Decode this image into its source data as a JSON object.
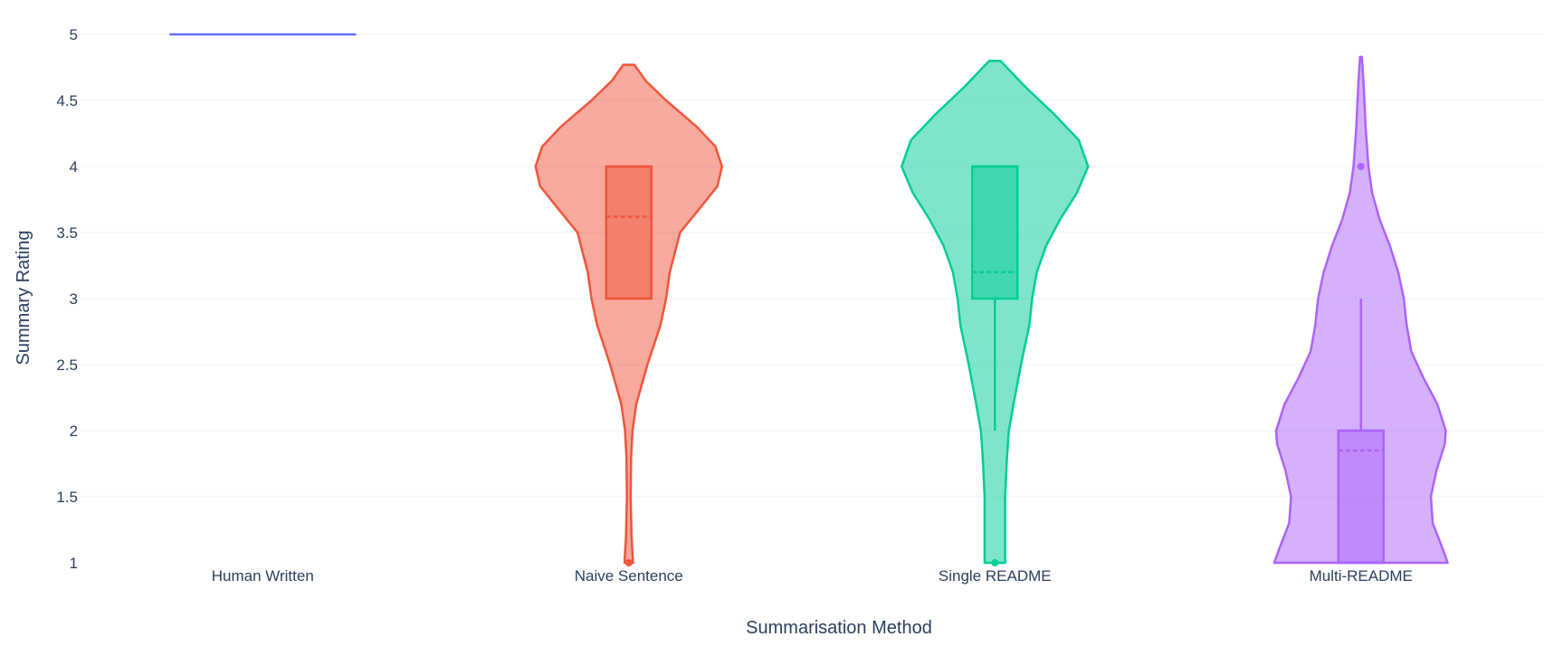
{
  "chart_data": {
    "type": "violin",
    "title": "",
    "xlabel": "Summarisation Method",
    "ylabel": "Summary Rating",
    "ylim": [
      1,
      5
    ],
    "yticks": [
      1,
      1.5,
      2,
      2.5,
      3,
      3.5,
      4,
      4.5,
      5
    ],
    "ytick_labels": [
      "1",
      "1.5",
      "2",
      "2.5",
      "3",
      "3.5",
      "4",
      "4.5",
      "5"
    ],
    "grid": true,
    "legend": "none",
    "categories": [
      "Human Written",
      "Naive Sentence",
      "Single README",
      "Multi-README"
    ],
    "series": [
      {
        "category": "Human Written",
        "color": "#636efa",
        "min": 5,
        "q1": 5,
        "median": 5,
        "q3": 5,
        "max": 5,
        "mean": 5,
        "outliers": [],
        "density": [
          [
            5,
            1.0
          ]
        ]
      },
      {
        "category": "Naive Sentence",
        "color": "#ef553b",
        "min": 3,
        "q1": 3,
        "median": 4,
        "q3": 4,
        "max": 4,
        "mean": 3.62,
        "outliers": [
          1
        ],
        "density": [
          [
            1.0,
            0.045
          ],
          [
            1.2,
            0.03
          ],
          [
            1.5,
            0.02
          ],
          [
            1.8,
            0.025
          ],
          [
            2.0,
            0.04
          ],
          [
            2.2,
            0.08
          ],
          [
            2.5,
            0.2
          ],
          [
            2.8,
            0.34
          ],
          [
            3.0,
            0.4
          ],
          [
            3.2,
            0.44
          ],
          [
            3.5,
            0.55
          ],
          [
            3.7,
            0.78
          ],
          [
            3.85,
            0.95
          ],
          [
            4.0,
            1.0
          ],
          [
            4.15,
            0.93
          ],
          [
            4.3,
            0.73
          ],
          [
            4.5,
            0.4
          ],
          [
            4.65,
            0.18
          ],
          [
            4.77,
            0.06
          ]
        ]
      },
      {
        "category": "Single README",
        "color": "#00cc96",
        "min": 2,
        "q1": 3,
        "median": 4,
        "q3": 4,
        "max": 4,
        "mean": 3.2,
        "outliers": [
          1
        ],
        "density": [
          [
            1.0,
            0.11
          ],
          [
            1.2,
            0.11
          ],
          [
            1.5,
            0.11
          ],
          [
            1.8,
            0.13
          ],
          [
            2.0,
            0.15
          ],
          [
            2.2,
            0.2
          ],
          [
            2.5,
            0.28
          ],
          [
            2.8,
            0.37
          ],
          [
            3.0,
            0.4
          ],
          [
            3.2,
            0.45
          ],
          [
            3.4,
            0.55
          ],
          [
            3.6,
            0.7
          ],
          [
            3.8,
            0.88
          ],
          [
            4.0,
            1.0
          ],
          [
            4.2,
            0.9
          ],
          [
            4.4,
            0.63
          ],
          [
            4.6,
            0.33
          ],
          [
            4.8,
            0.06
          ]
        ]
      },
      {
        "category": "Multi-README",
        "color": "#ab63fa",
        "min": 1,
        "q1": 1,
        "median": 2,
        "q3": 2,
        "max": 3,
        "mean": 1.85,
        "outliers": [
          4
        ],
        "density": [
          [
            1.0,
            0.93
          ],
          [
            1.1,
            0.88
          ],
          [
            1.3,
            0.77
          ],
          [
            1.5,
            0.75
          ],
          [
            1.7,
            0.81
          ],
          [
            1.9,
            0.9
          ],
          [
            2.0,
            0.91
          ],
          [
            2.2,
            0.82
          ],
          [
            2.4,
            0.67
          ],
          [
            2.6,
            0.54
          ],
          [
            2.8,
            0.49
          ],
          [
            3.0,
            0.46
          ],
          [
            3.2,
            0.4
          ],
          [
            3.4,
            0.31
          ],
          [
            3.6,
            0.2
          ],
          [
            3.8,
            0.12
          ],
          [
            4.0,
            0.08
          ],
          [
            4.3,
            0.05
          ],
          [
            4.6,
            0.03
          ],
          [
            4.83,
            0.01
          ]
        ]
      }
    ]
  }
}
